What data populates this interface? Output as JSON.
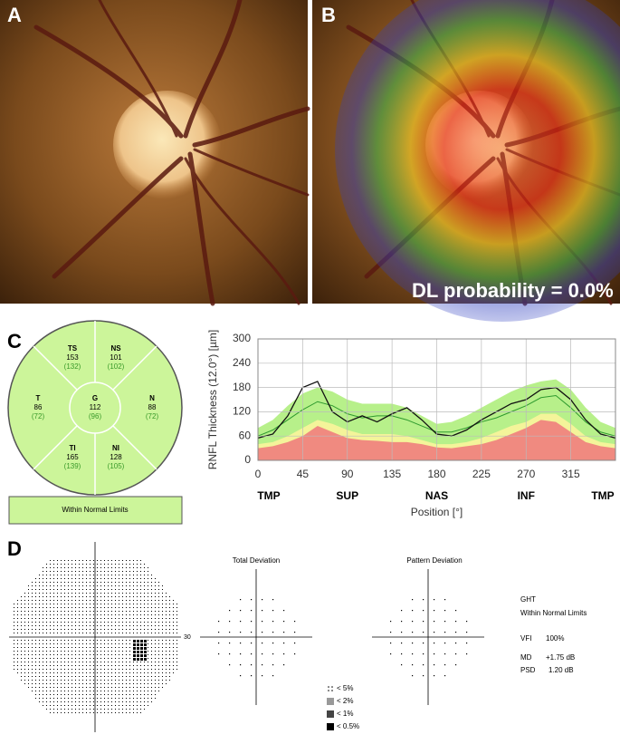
{
  "panels": {
    "a": "A",
    "b": "B",
    "c": "C",
    "d": "D"
  },
  "dl_label": "DL probability = 0.0%",
  "sector_map": {
    "sectors": [
      {
        "label": "TS",
        "value": "153",
        "normal": "(132)"
      },
      {
        "label": "NS",
        "value": "101",
        "normal": "(102)"
      },
      {
        "label": "T",
        "value": "86",
        "normal": "(72)"
      },
      {
        "label": "G",
        "value": "112",
        "normal": "(96)"
      },
      {
        "label": "N",
        "value": "88",
        "normal": "(72)"
      },
      {
        "label": "TI",
        "value": "165",
        "normal": "(139)"
      },
      {
        "label": "NI",
        "value": "128",
        "normal": "(105)"
      }
    ],
    "classification": "Within Normal Limits"
  },
  "chart_data": {
    "type": "line",
    "ylabel": "RNFL Thickness (12.0°) [µm]",
    "xlabel": "Position [°]",
    "x": [
      0,
      15,
      30,
      45,
      60,
      75,
      90,
      105,
      120,
      135,
      150,
      165,
      180,
      195,
      210,
      225,
      240,
      255,
      270,
      285,
      300,
      315,
      330,
      345,
      360
    ],
    "series": [
      {
        "color": "#b7f08a",
        "values": [
          80,
          100,
          135,
          165,
          180,
          170,
          150,
          140,
          140,
          140,
          130,
          110,
          90,
          95,
          110,
          130,
          150,
          170,
          185,
          195,
          200,
          175,
          130,
          95,
          80
        ]
      },
      {
        "color": "#f4f49a",
        "values": [
          40,
          45,
          60,
          80,
          100,
          90,
          75,
          65,
          65,
          65,
          60,
          50,
          40,
          40,
          45,
          55,
          70,
          85,
          95,
          115,
          115,
          90,
          60,
          45,
          40
        ]
      },
      {
        "color": "#f08a80",
        "values": [
          30,
          35,
          45,
          60,
          85,
          70,
          55,
          50,
          48,
          45,
          45,
          40,
          32,
          30,
          35,
          40,
          50,
          65,
          80,
          100,
          95,
          70,
          45,
          35,
          30
        ]
      },
      {
        "color": "#2e9a2e",
        "values": [
          60,
          75,
          100,
          125,
          145,
          135,
          115,
          105,
          110,
          110,
          100,
          85,
          70,
          70,
          80,
          95,
          105,
          120,
          135,
          155,
          160,
          130,
          95,
          70,
          60
        ]
      },
      {
        "color": "#111111",
        "values": [
          55,
          65,
          110,
          180,
          195,
          120,
          95,
          110,
          95,
          115,
          130,
          100,
          65,
          60,
          75,
          100,
          120,
          140,
          150,
          175,
          180,
          150,
          100,
          65,
          55
        ]
      }
    ],
    "xlim": [
      0,
      360
    ],
    "ylim": [
      0,
      300
    ],
    "xticks": [
      0,
      45,
      90,
      135,
      180,
      225,
      270,
      315
    ],
    "yticks": [
      0,
      60,
      120,
      180,
      240,
      300
    ],
    "sector_ticks": [
      {
        "value": 0,
        "label": "TMP"
      },
      {
        "value": 90,
        "label": "SUP"
      },
      {
        "value": 180,
        "label": "NAS"
      },
      {
        "value": 270,
        "label": "INF"
      },
      {
        "value": 360,
        "label": "TMP"
      }
    ],
    "grid": true
  },
  "visual_field": {
    "scale_label": "30",
    "total_title": "Total Deviation",
    "pattern_title": "Pattern Deviation",
    "legend": [
      "< 5%",
      "< 2%",
      "< 1%",
      "< 0.5%"
    ],
    "ght_label": "GHT",
    "ght_value": "Within Normal Limits",
    "vfi_label": "VFI",
    "vfi_value": "100%",
    "md_label": "MD",
    "md_value": "+1.75 dB",
    "psd_label": "PSD",
    "psd_value": "1.20 dB"
  }
}
